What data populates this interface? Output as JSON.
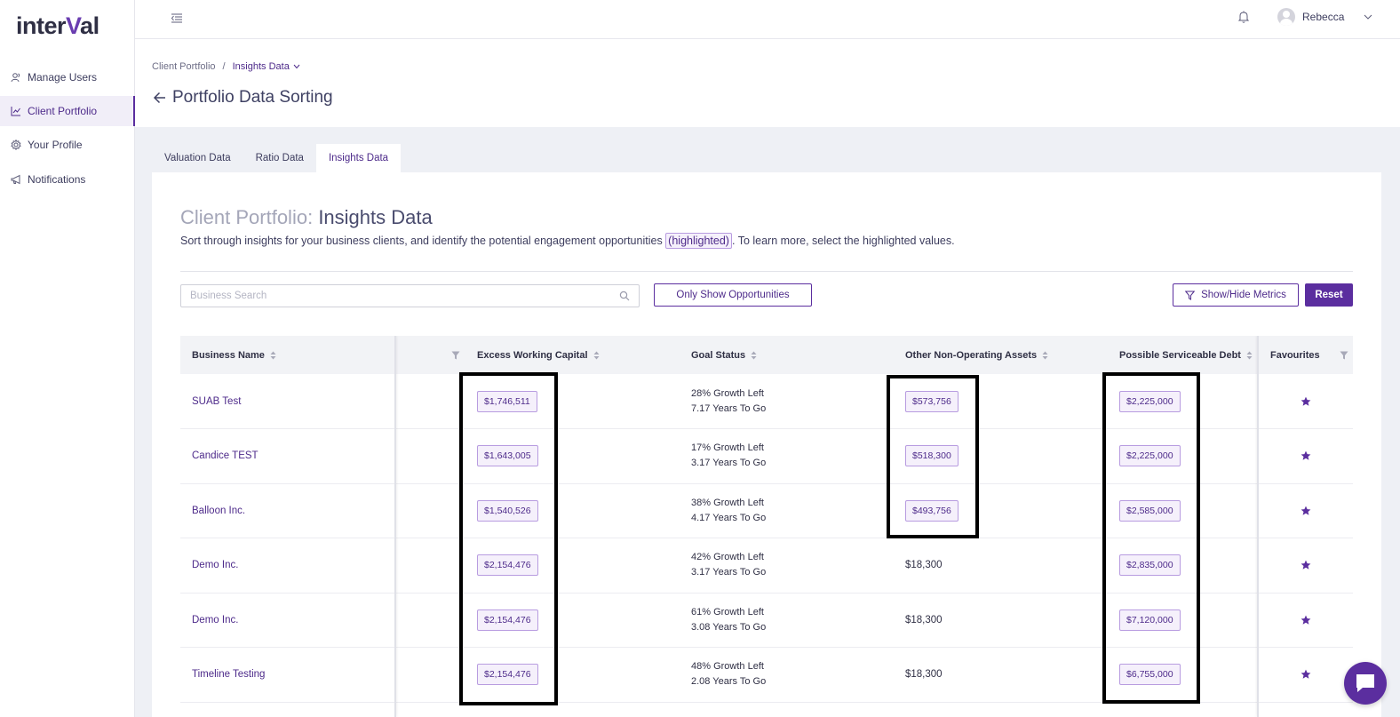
{
  "app": {
    "logo_left": "inter",
    "logo_accent": "V",
    "logo_right": "al"
  },
  "sidebar": {
    "items": [
      {
        "label": "Manage Users",
        "icon": "users-icon"
      },
      {
        "label": "Client Portfolio",
        "icon": "chart-icon",
        "active": true
      },
      {
        "label": "Your Profile",
        "icon": "gear-icon"
      },
      {
        "label": "Notifications",
        "icon": "megaphone-icon"
      }
    ]
  },
  "topbar": {
    "user_name": "Rebecca"
  },
  "header": {
    "breadcrumb": [
      "Client Portfolio",
      "Insights Data"
    ],
    "title": "Portfolio Data Sorting"
  },
  "tabs": [
    {
      "label": "Valuation Data"
    },
    {
      "label": "Ratio Data"
    },
    {
      "label": "Insights Data",
      "active": true
    }
  ],
  "card": {
    "title_prefix": "Client Portfolio:",
    "title_main": "Insights Data",
    "desc_before": "Sort through insights for your business clients, and identify the potential engagement opportunities ",
    "desc_highlight": "(highlighted)",
    "desc_after": ". To learn more, select the highlighted values."
  },
  "toolbar": {
    "search_placeholder": "Business Search",
    "opportunities_label": "Only Show Opportunities",
    "metrics_label": "Show/Hide Metrics",
    "reset_label": "Reset"
  },
  "table": {
    "headers": {
      "business_name": "Business Name",
      "excess_working_capital": "Excess Working Capital",
      "goal_status": "Goal Status",
      "other_non_operating_assets": "Other Non-Operating Assets",
      "possible_serviceable_debt": "Possible Serviceable Debt",
      "favourites": "Favourites"
    },
    "rows": [
      {
        "name": "SUAB Test",
        "ewc": "$1,746,511",
        "ewc_hl": true,
        "goal1": "28% Growth Left",
        "goal2": "7.17 Years To Go",
        "onoa": "$573,756",
        "onoa_hl": true,
        "psd": "$2,225,000",
        "psd_hl": true
      },
      {
        "name": "Candice TEST",
        "ewc": "$1,643,005",
        "ewc_hl": true,
        "goal1": "17% Growth Left",
        "goal2": "3.17 Years To Go",
        "onoa": "$518,300",
        "onoa_hl": true,
        "psd": "$2,225,000",
        "psd_hl": true
      },
      {
        "name": "Balloon Inc.",
        "ewc": "$1,540,526",
        "ewc_hl": true,
        "goal1": "38% Growth Left",
        "goal2": "4.17 Years To Go",
        "onoa": "$493,756",
        "onoa_hl": true,
        "psd": "$2,585,000",
        "psd_hl": true
      },
      {
        "name": "Demo Inc.",
        "ewc": "$2,154,476",
        "ewc_hl": true,
        "goal1": "42% Growth Left",
        "goal2": "3.17 Years To Go",
        "onoa": "$18,300",
        "onoa_hl": false,
        "psd": "$2,835,000",
        "psd_hl": true
      },
      {
        "name": "Demo Inc.",
        "ewc": "$2,154,476",
        "ewc_hl": true,
        "goal1": "61% Growth Left",
        "goal2": "3.08 Years To Go",
        "onoa": "$18,300",
        "onoa_hl": false,
        "psd": "$7,120,000",
        "psd_hl": true
      },
      {
        "name": "Timeline Testing",
        "ewc": "$2,154,476",
        "ewc_hl": true,
        "goal1": "48% Growth Left",
        "goal2": "2.08 Years To Go",
        "onoa": "$18,300",
        "onoa_hl": false,
        "psd": "$6,755,000",
        "psd_hl": true
      }
    ]
  },
  "colors": {
    "brand": "#5b2e9f",
    "highlight_border": "#b89ce0",
    "highlight_bg": "#f5f0fb"
  }
}
